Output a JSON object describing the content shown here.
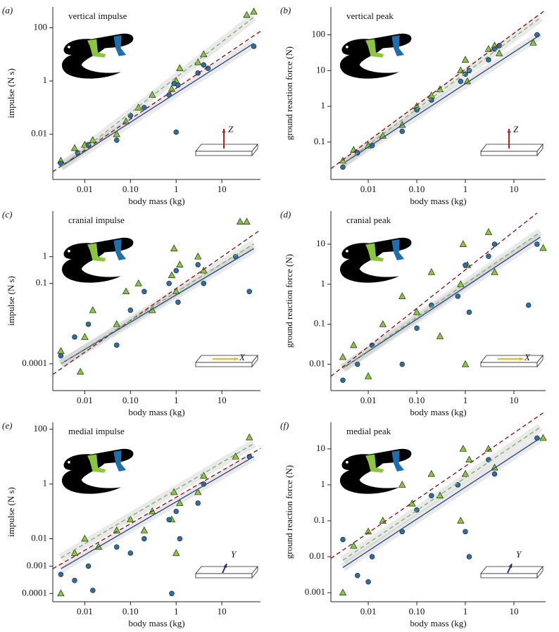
{
  "chart_data": [
    {
      "type": "scatter",
      "panel_label": "(a)",
      "title": "vertical impulse",
      "xlabel": "body mass (kg)",
      "ylabel": "impulse (N s)",
      "xscale": "log",
      "yscale": "log",
      "xlim": [
        0.002,
        70
      ],
      "ylim": [
        0.0002,
        600
      ],
      "xticks": [
        0.01,
        {
          "value": 0.1,
          "label": "0.10"
        },
        1,
        10
      ],
      "yticks": [
        0.01,
        1,
        100
      ],
      "glyph": "Z",
      "glyph_color": "#b22222",
      "series": [
        {
          "marker": "triangle",
          "color": "#8cc63f",
          "x": [
            0.003,
            0.006,
            0.01,
            0.015,
            0.05,
            0.08,
            0.15,
            0.3,
            0.8,
            1,
            1.2,
            3,
            4,
            35,
            50
          ],
          "values": [
            0.001,
            0.003,
            0.004,
            0.006,
            0.01,
            0.03,
            0.1,
            0.3,
            0.5,
            1,
            3,
            5,
            10,
            300,
            400
          ]
        },
        {
          "marker": "circle",
          "color": "#2f6ea8",
          "x": [
            0.003,
            0.007,
            0.012,
            0.05,
            0.1,
            0.2,
            0.7,
            0.9,
            1,
            1.1,
            3,
            4,
            5,
            50
          ],
          "values": [
            0.0008,
            0.002,
            0.004,
            0.006,
            0.05,
            0.1,
            0.3,
            0.8,
            0.012,
            0.7,
            2,
            4,
            3,
            20
          ]
        }
      ],
      "fits": [
        {
          "color": "#8b1a1a",
          "linestyle": "dashed",
          "x": [
            0.002,
            70
          ],
          "values": [
            0.00039,
            74
          ]
        },
        {
          "color": "#2f4f7f",
          "linestyle": "solid",
          "x": [
            0.003,
            50
          ],
          "values": [
            0.0006,
            26
          ]
        },
        {
          "color": "#7fb36a",
          "linestyle": "dashed",
          "x": [
            0.003,
            50
          ],
          "values": [
            0.0006,
            250
          ]
        }
      ]
    },
    {
      "type": "scatter",
      "panel_label": "(b)",
      "title": "vertical peak",
      "xlabel": "body mass (kg)",
      "ylabel": "ground reaction force (N)",
      "xscale": "log",
      "yscale": "log",
      "xlim": [
        0.0017,
        45
      ],
      "ylim": [
        0.009,
        600
      ],
      "xticks": [
        0.01,
        {
          "value": 0.1,
          "label": "0.10"
        },
        1,
        10
      ],
      "yticks": [
        0.1,
        1,
        10,
        100
      ],
      "glyph": "Z",
      "glyph_color": "#b22222",
      "series": [
        {
          "marker": "triangle",
          "color": "#8cc63f",
          "x": [
            0.003,
            0.005,
            0.01,
            0.02,
            0.05,
            0.1,
            0.2,
            0.3,
            0.8,
            1,
            1.1,
            3,
            4,
            5,
            25
          ],
          "values": [
            0.03,
            0.06,
            0.08,
            0.15,
            0.3,
            1,
            2,
            3,
            10,
            20,
            5,
            40,
            50,
            30,
            60
          ]
        },
        {
          "marker": "circle",
          "color": "#2f6ea8",
          "x": [
            0.003,
            0.006,
            0.012,
            0.05,
            0.1,
            0.2,
            0.8,
            1,
            1.2,
            3,
            4,
            5,
            30
          ],
          "values": [
            0.02,
            0.05,
            0.08,
            0.2,
            0.8,
            1.5,
            5,
            8,
            10,
            20,
            40,
            50,
            100
          ]
        }
      ],
      "fits": [
        {
          "color": "#8b1a1a",
          "linestyle": "dashed",
          "x": [
            0.0017,
            45
          ],
          "values": [
            0.018,
            500
          ]
        },
        {
          "color": "#2f4f7f",
          "linestyle": "solid",
          "x": [
            0.003,
            35
          ],
          "values": [
            0.025,
            100
          ]
        },
        {
          "color": "#7fb36a",
          "linestyle": "dashed",
          "x": [
            0.003,
            35
          ],
          "values": [
            0.025,
            300
          ]
        }
      ]
    },
    {
      "type": "scatter",
      "panel_label": "(c)",
      "title": "cranial impulse",
      "xlabel": "body mass (kg)",
      "ylabel": "impulse (N s)",
      "xscale": "log",
      "yscale": "log",
      "xlim": [
        0.002,
        70
      ],
      "ylim": [
        1e-05,
        50
      ],
      "xticks": [
        0.01,
        {
          "value": 0.1,
          "label": "0.10"
        },
        1,
        10
      ],
      "yticks": [
        0.0001,
        0.1,
        1
      ],
      "glyph": "X",
      "glyph_color": "#f5b800",
      "series": [
        {
          "marker": "triangle",
          "color": "#8cc63f",
          "x": [
            0.003,
            0.008,
            0.01,
            0.015,
            0.05,
            0.08,
            0.15,
            0.3,
            0.8,
            0.9,
            1,
            1.2,
            3,
            4,
            25,
            35
          ],
          "values": [
            0.0003,
            5e-05,
            0.001,
            0.01,
            0.003,
            0.05,
            0.1,
            0.01,
            0.2,
            2,
            0.05,
            0.5,
            1,
            0.3,
            20,
            20
          ]
        },
        {
          "marker": "circle",
          "color": "#2f6ea8",
          "x": [
            0.003,
            0.006,
            0.012,
            0.05,
            0.1,
            0.2,
            0.7,
            1,
            1.1,
            3,
            4,
            20,
            40
          ],
          "values": [
            0.0002,
            0.001,
            0.003,
            0.0005,
            0.01,
            0.05,
            0.1,
            0.3,
            0.02,
            0.5,
            0.1,
            1,
            0.05
          ]
        }
      ],
      "fits": [
        {
          "color": "#8b1a1a",
          "linestyle": "dashed",
          "x": [
            0.002,
            70
          ],
          "values": [
            4e-05,
            10
          ]
        },
        {
          "color": "#2f4f7f",
          "linestyle": "solid",
          "x": [
            0.003,
            50
          ],
          "values": [
            0.0001,
            2
          ]
        },
        {
          "color": "#7fb36a",
          "linestyle": "dashed",
          "x": [
            0.003,
            50
          ],
          "values": [
            0.0001,
            3
          ]
        }
      ]
    },
    {
      "type": "scatter",
      "panel_label": "(d)",
      "title": "cranial peak",
      "xlabel": "body mass (kg)",
      "ylabel": "ground reaction force (N)",
      "xscale": "log",
      "yscale": "log",
      "xlim": [
        0.0017,
        45
      ],
      "ylim": [
        0.0022,
        67
      ],
      "xticks": [
        0.01,
        {
          "value": 0.1,
          "label": "0.10"
        },
        1,
        10
      ],
      "yticks": [
        0.01,
        0.1,
        1,
        10
      ],
      "glyph": "X",
      "glyph_color": "#f5b800",
      "series": [
        {
          "marker": "triangle",
          "color": "#8cc63f",
          "x": [
            0.003,
            0.005,
            0.01,
            0.02,
            0.05,
            0.1,
            0.2,
            0.3,
            0.8,
            0.9,
            1,
            1.1,
            3,
            4,
            40
          ],
          "values": [
            0.015,
            0.03,
            0.005,
            0.1,
            0.5,
            0.2,
            2,
            0.05,
            1,
            10,
            0.01,
            3,
            20,
            2,
            8
          ]
        },
        {
          "marker": "circle",
          "color": "#2f6ea8",
          "x": [
            0.003,
            0.006,
            0.012,
            0.05,
            0.1,
            0.2,
            0.7,
            1,
            1.2,
            3,
            4,
            20,
            30
          ],
          "values": [
            0.004,
            0.01,
            0.03,
            0.01,
            0.08,
            0.3,
            0.5,
            3,
            0.2,
            5,
            10,
            0.3,
            10
          ]
        }
      ],
      "fits": [
        {
          "color": "#8b1a1a",
          "linestyle": "dashed",
          "x": [
            0.0017,
            30
          ],
          "values": [
            0.005,
            60
          ]
        },
        {
          "color": "#2f4f7f",
          "linestyle": "solid",
          "x": [
            0.003,
            35
          ],
          "values": [
            0.008,
            15
          ]
        },
        {
          "color": "#7fb36a",
          "linestyle": "dashed",
          "x": [
            0.003,
            35
          ],
          "values": [
            0.008,
            20
          ]
        }
      ]
    },
    {
      "type": "scatter",
      "panel_label": "(e)",
      "title": "medial impulse",
      "xlabel": "body mass (kg)",
      "ylabel": "impulse (N s)",
      "xscale": "log",
      "yscale": "log",
      "xlim": [
        0.002,
        70
      ],
      "ylim": [
        5e-05,
        180
      ],
      "xticks": [
        0.01,
        {
          "value": 0.1,
          "label": "0.10"
        },
        1,
        10
      ],
      "yticks": [
        0.0001,
        0.001,
        0.01,
        1,
        100
      ],
      "glyph": "Y",
      "glyph_color": "#2a2a7a",
      "series": [
        {
          "marker": "triangle",
          "color": "#8cc63f",
          "x": [
            0.003,
            0.006,
            0.01,
            0.02,
            0.05,
            0.1,
            0.2,
            0.3,
            0.8,
            0.9,
            1,
            1.2,
            3,
            4,
            20,
            40
          ],
          "values": [
            0.0001,
            0.003,
            0.01,
            0.005,
            0.02,
            0.05,
            0.02,
            0.1,
            0.05,
            0.5,
            0.003,
            0.2,
            0.5,
            2,
            10,
            50
          ]
        },
        {
          "marker": "circle",
          "color": "#2f6ea8",
          "x": [
            0.003,
            0.006,
            0.012,
            0.015,
            0.05,
            0.1,
            0.2,
            0.7,
            0.8,
            1,
            1.2,
            3,
            4,
            40
          ],
          "values": [
            0.0005,
            0.0003,
            0.001,
            0.00013,
            0.005,
            0.003,
            0.01,
            0.05,
            0.0001,
            0.1,
            0.01,
            0.2,
            1,
            10
          ]
        }
      ],
      "fits": [
        {
          "color": "#8b1a1a",
          "linestyle": "dashed",
          "x": [
            0.002,
            70
          ],
          "values": [
            0.0008,
            20
          ]
        },
        {
          "color": "#2f4f7f",
          "linestyle": "solid",
          "x": [
            0.003,
            50
          ],
          "values": [
            0.0008,
            10
          ]
        },
        {
          "color": "#7fb36a",
          "linestyle": "dashed",
          "x": [
            0.003,
            50
          ],
          "values": [
            0.002,
            30
          ]
        }
      ]
    },
    {
      "type": "scatter",
      "panel_label": "(f)",
      "title": "medial peak",
      "xlabel": "body mass (kg)",
      "ylabel": "ground reaction force (N)",
      "xscale": "log",
      "yscale": "log",
      "xlim": [
        0.0017,
        45
      ],
      "ylim": [
        0.00056,
        55
      ],
      "xticks": [
        0.01,
        {
          "value": 0.1,
          "label": "0.10"
        },
        1,
        10
      ],
      "yticks": [
        0.001,
        0.01,
        0.1,
        1,
        10
      ],
      "glyph": "Y",
      "glyph_color": "#2a2a7a",
      "series": [
        {
          "marker": "triangle",
          "color": "#8cc63f",
          "x": [
            0.003,
            0.005,
            0.01,
            0.02,
            0.05,
            0.08,
            0.2,
            0.3,
            0.8,
            0.9,
            1,
            1.2,
            3,
            4,
            40
          ],
          "values": [
            0.001,
            0.02,
            0.05,
            0.1,
            1,
            0.3,
            2,
            0.5,
            0.1,
            10,
            2,
            5,
            10,
            3,
            20
          ]
        },
        {
          "marker": "circle",
          "color": "#2f6ea8",
          "x": [
            0.003,
            0.006,
            0.01,
            0.012,
            0.05,
            0.1,
            0.2,
            0.7,
            1,
            1.2,
            3,
            4,
            30
          ],
          "values": [
            0.03,
            0.003,
            0.002,
            0.01,
            0.05,
            0.2,
            0.5,
            1,
            0.05,
            0.01,
            5,
            2,
            20
          ]
        }
      ],
      "fits": [
        {
          "color": "#8b1a1a",
          "linestyle": "dashed",
          "x": [
            0.0017,
            40
          ],
          "values": [
            0.009,
            100
          ]
        },
        {
          "color": "#2f4f7f",
          "linestyle": "solid",
          "x": [
            0.003,
            35
          ],
          "values": [
            0.005,
            20
          ]
        },
        {
          "color": "#7fb36a",
          "linestyle": "dashed",
          "x": [
            0.003,
            35
          ],
          "values": [
            0.008,
            40
          ]
        }
      ]
    }
  ]
}
